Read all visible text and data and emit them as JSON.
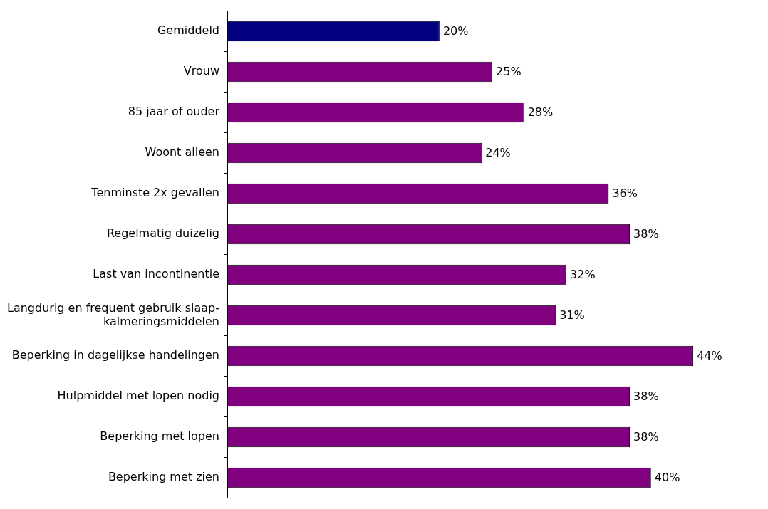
{
  "chart_data": {
    "type": "bar",
    "orientation": "horizontal",
    "tick_labels": "y",
    "categories": [
      "Gemiddeld",
      "Vrouw",
      "85 jaar of ouder",
      "Woont alleen",
      "Tenminste 2x gevallen",
      "Regelmatig duizelig",
      "Last van incontinentie",
      "Langdurig en frequent gebruik slaap-\nkalmeringsmiddelen",
      "Beperking in dagelijkse handelingen",
      "Hulpmiddel met lopen nodig",
      "Beperking met lopen",
      "Beperking met zien"
    ],
    "values": [
      20,
      25,
      28,
      24,
      36,
      38,
      32,
      31,
      44,
      38,
      38,
      40
    ],
    "value_labels": [
      "20%",
      "25%",
      "28%",
      "24%",
      "36%",
      "38%",
      "32%",
      "31%",
      "44%",
      "38%",
      "38%",
      "40%"
    ],
    "colors": [
      "#000080",
      "#800080",
      "#800080",
      "#800080",
      "#800080",
      "#800080",
      "#800080",
      "#800080",
      "#800080",
      "#800080",
      "#800080",
      "#800080"
    ],
    "legend": false
  }
}
